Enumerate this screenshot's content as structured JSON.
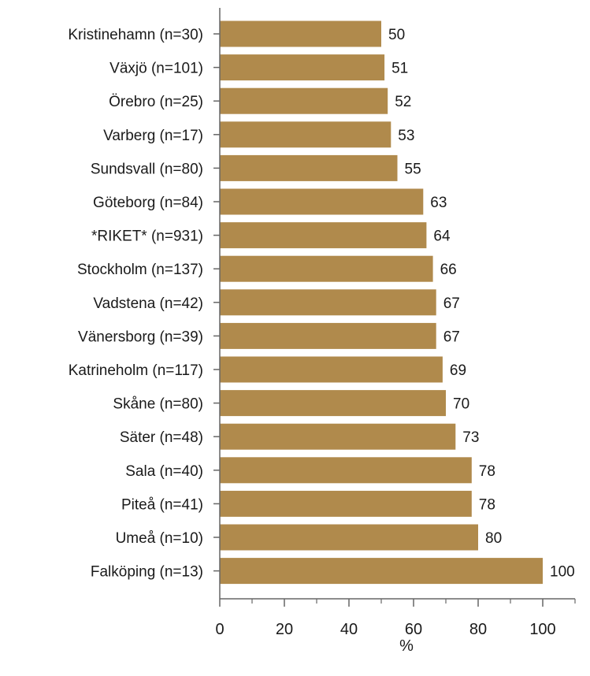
{
  "chart_data": {
    "type": "bar",
    "orientation": "horizontal",
    "categories": [
      "Kristinehamn (n=30)",
      "Växjö (n=101)",
      "Örebro (n=25)",
      "Varberg (n=17)",
      "Sundsvall (n=80)",
      "Göteborg (n=84)",
      "*RIKET* (n=931)",
      "Stockholm (n=137)",
      "Vadstena (n=42)",
      "Vänersborg (n=39)",
      "Katrineholm (n=117)",
      "Skåne (n=80)",
      "Säter (n=48)",
      "Sala (n=40)",
      "Piteå (n=41)",
      "Umeå (n=10)",
      "Falköping (n=13)"
    ],
    "values": [
      50,
      51,
      52,
      53,
      55,
      63,
      64,
      66,
      67,
      67,
      69,
      70,
      73,
      78,
      78,
      80,
      100
    ],
    "xlabel": "%",
    "xlim": [
      0,
      110
    ],
    "xticks": [
      0,
      20,
      40,
      60,
      80,
      100
    ],
    "grid": false,
    "bar_color": "#b08a4c"
  }
}
